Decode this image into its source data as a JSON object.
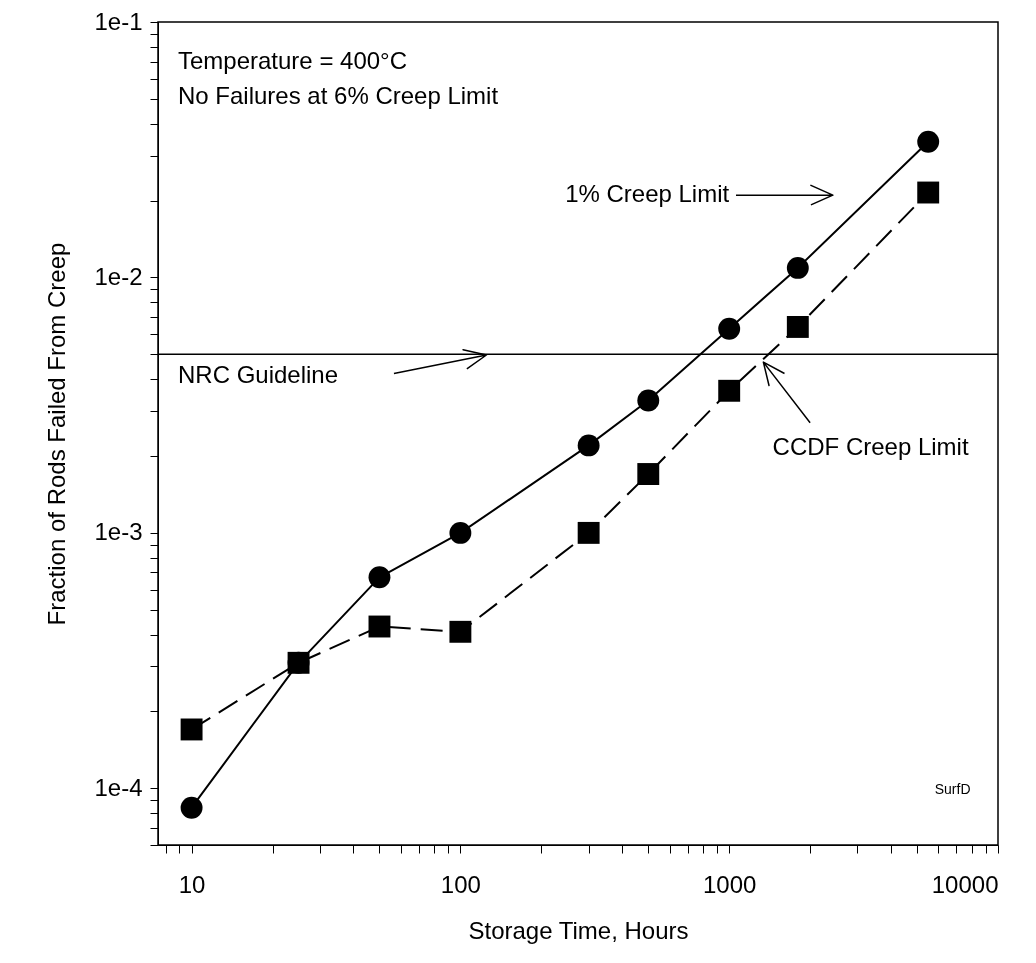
{
  "chart_data": {
    "type": "line",
    "xlabel": "Storage Time, Hours",
    "ylabel": "Fraction of Rods Failed From Creep",
    "log": "xy",
    "grid": false,
    "xlim": [
      7.5,
      10000
    ],
    "ylim": [
      6e-05,
      0.1
    ],
    "xticks": [
      {
        "value": 8,
        "label": null
      },
      {
        "value": 9,
        "label": null
      },
      10,
      {
        "value": 20,
        "label": null
      },
      {
        "value": 30,
        "label": null
      },
      {
        "value": 40,
        "label": null
      },
      {
        "value": 50,
        "label": null
      },
      {
        "value": 60,
        "label": null
      },
      {
        "value": 70,
        "label": null
      },
      {
        "value": 80,
        "label": null
      },
      {
        "value": 90,
        "label": null
      },
      100,
      {
        "value": 200,
        "label": null
      },
      {
        "value": 300,
        "label": null
      },
      {
        "value": 400,
        "label": null
      },
      {
        "value": 500,
        "label": null
      },
      {
        "value": 600,
        "label": null
      },
      {
        "value": 700,
        "label": null
      },
      {
        "value": 800,
        "label": null
      },
      {
        "value": 900,
        "label": null
      },
      1000,
      {
        "value": 2000,
        "label": null
      },
      {
        "value": 3000,
        "label": null
      },
      {
        "value": 4000,
        "label": null
      },
      {
        "value": 5000,
        "label": null
      },
      {
        "value": 6000,
        "label": null
      },
      {
        "value": 7000,
        "label": null
      },
      {
        "value": 8000,
        "label": null
      },
      {
        "value": 9000,
        "label": null
      },
      10000
    ],
    "yticks": [
      {
        "value": 6e-05,
        "label": null
      },
      {
        "value": 7e-05,
        "label": null
      },
      {
        "value": 8e-05,
        "label": null
      },
      {
        "value": 9e-05,
        "label": null
      },
      {
        "value": 0.0001,
        "label": "1e-4"
      },
      {
        "value": 0.0002,
        "label": null
      },
      {
        "value": 0.0003,
        "label": null
      },
      {
        "value": 0.0004,
        "label": null
      },
      {
        "value": 0.0005,
        "label": null
      },
      {
        "value": 0.0006,
        "label": null
      },
      {
        "value": 0.0007,
        "label": null
      },
      {
        "value": 0.0008,
        "label": null
      },
      {
        "value": 0.0009,
        "label": null
      },
      {
        "value": 0.001,
        "label": "1e-3"
      },
      {
        "value": 0.002,
        "label": null
      },
      {
        "value": 0.003,
        "label": null
      },
      {
        "value": 0.004,
        "label": null
      },
      {
        "value": 0.005,
        "label": null
      },
      {
        "value": 0.006,
        "label": null
      },
      {
        "value": 0.007,
        "label": null
      },
      {
        "value": 0.008,
        "label": null
      },
      {
        "value": 0.009,
        "label": null
      },
      {
        "value": 0.01,
        "label": "1e-2"
      },
      {
        "value": 0.02,
        "label": null
      },
      {
        "value": 0.03,
        "label": null
      },
      {
        "value": 0.04,
        "label": null
      },
      {
        "value": 0.05,
        "label": null
      },
      {
        "value": 0.06,
        "label": null
      },
      {
        "value": 0.07,
        "label": null
      },
      {
        "value": 0.08,
        "label": null
      },
      {
        "value": 0.09,
        "label": null
      },
      {
        "value": 0.1,
        "label": "1e-1"
      }
    ],
    "x": [
      10,
      25,
      50,
      100,
      300,
      500,
      1000,
      1800,
      5500
    ],
    "series": [
      {
        "name": "1% Creep Limit",
        "color": "#000000",
        "marker": "circle",
        "line_style": "solid",
        "values": [
          8.4e-05,
          0.00031,
          0.00067,
          0.001,
          0.0022,
          0.0033,
          0.0063,
          0.0109,
          0.034
        ]
      },
      {
        "name": "CCDF Creep Limit",
        "color": "#000000",
        "marker": "square",
        "line_style": "dashed",
        "values": [
          0.00017,
          0.00031,
          0.00043,
          0.00041,
          0.001,
          0.0017,
          0.0036,
          0.0064,
          0.0215
        ]
      }
    ],
    "ref_lines": [
      {
        "axis": "y",
        "value": 0.005,
        "label": "NRC Guideline",
        "color": "#000000"
      }
    ],
    "annotations": [
      "Temperature = 400°C",
      "No Failures at 6% Creep Limit",
      "SurfD"
    ]
  }
}
